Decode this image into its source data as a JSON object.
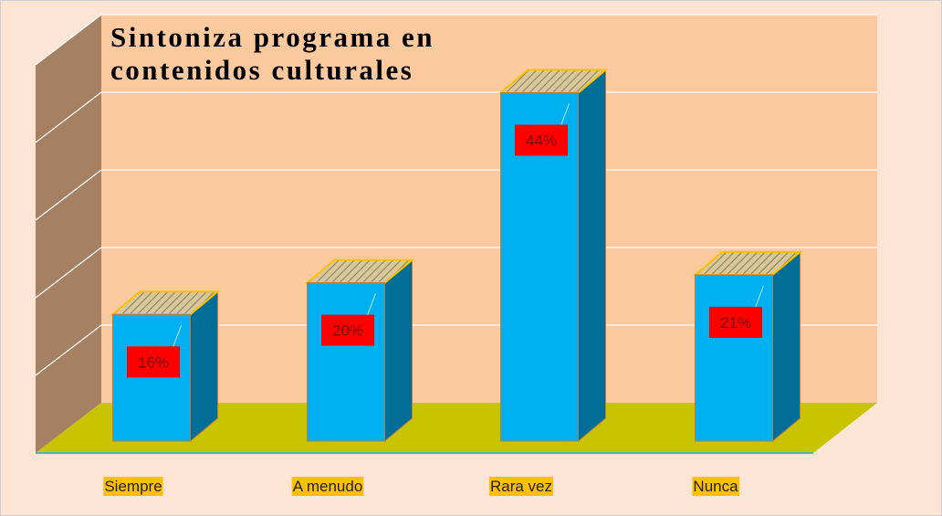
{
  "chart_data": {
    "type": "bar3d",
    "title": "Sintoniza programa en contenidos culturales",
    "categories": [
      "Siempre",
      "A menudo",
      "Rara vez",
      "Nunca"
    ],
    "values": [
      16,
      20,
      44,
      21
    ],
    "value_labels": [
      "16%",
      "20%",
      "44%",
      "21%"
    ],
    "color": "#00b0f0",
    "ylim": [
      0,
      50
    ],
    "yticks": [
      0,
      10,
      20,
      30,
      40,
      50
    ],
    "grid": true
  }
}
